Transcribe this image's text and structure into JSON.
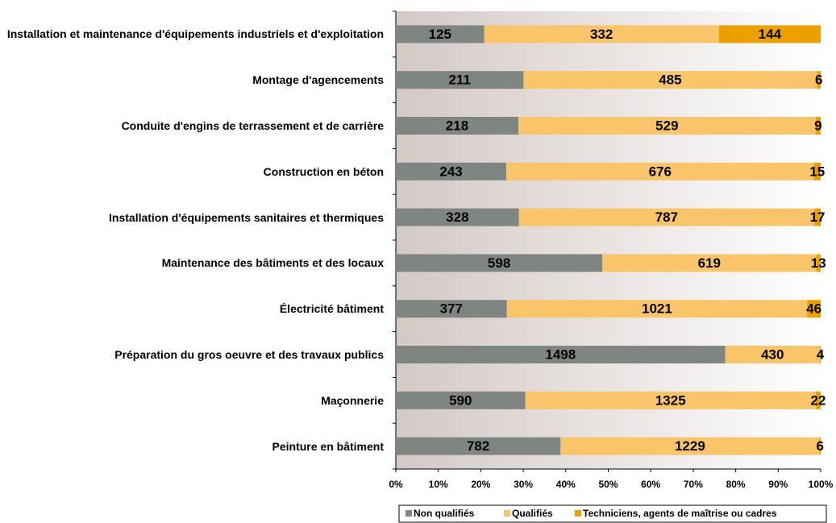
{
  "chart_data": {
    "type": "bar100h",
    "categories": [
      "Installation et maintenance d'équipements industriels et d'exploitation",
      "Montage d'agencements",
      "Conduite d'engins de terrassement et de carrière",
      "Construction en béton",
      "Installation d'équipements sanitaires et thermiques",
      "Maintenance des bâtiments et des locaux",
      "Électricité bâtiment",
      "Préparation du gros oeuvre et des travaux publics",
      "Maçonnerie",
      "Peinture en bâtiment"
    ],
    "series": [
      {
        "name": "Non qualifiés",
        "color": "#7f8580",
        "values": [
          125,
          211,
          218,
          243,
          328,
          598,
          377,
          1498,
          590,
          782
        ]
      },
      {
        "name": "Qualifiés",
        "color": "#f9c46a",
        "values": [
          332,
          485,
          529,
          676,
          787,
          619,
          1021,
          430,
          1325,
          1229
        ]
      },
      {
        "name": "Techniciens, agents de maîtrise ou cadres",
        "color": "#eba000",
        "values": [
          144,
          6,
          9,
          15,
          17,
          13,
          46,
          4,
          22,
          6
        ]
      }
    ],
    "xlim": [
      0,
      100
    ],
    "xticks": [
      {
        "value": 0,
        "label": "0%"
      },
      {
        "value": 10,
        "label": "10%"
      },
      {
        "value": 20,
        "label": "20%"
      },
      {
        "value": 30,
        "label": "30%"
      },
      {
        "value": 40,
        "label": "40%"
      },
      {
        "value": 50,
        "label": "50%"
      },
      {
        "value": 60,
        "label": "60%"
      },
      {
        "value": 70,
        "label": "70%"
      },
      {
        "value": 80,
        "label": "80%"
      },
      {
        "value": 90,
        "label": "90%"
      },
      {
        "value": 100,
        "label": "100%"
      }
    ],
    "legend": "bottom"
  }
}
